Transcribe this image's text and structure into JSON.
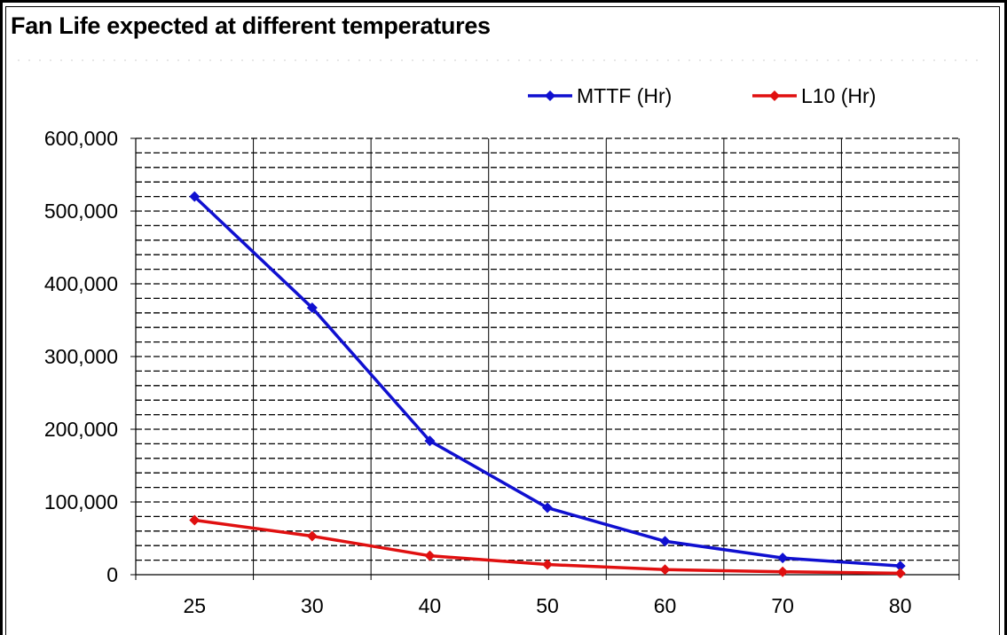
{
  "chart_data": {
    "type": "line",
    "title": "Fan Life expected at different temperatures",
    "xlabel": "",
    "ylabel": "",
    "categories": [
      "25",
      "30",
      "40",
      "50",
      "60",
      "70",
      "80"
    ],
    "series": [
      {
        "name": "MTTF (Hr)",
        "color": "#1010d0",
        "values": [
          520000,
          367000,
          184000,
          92000,
          46000,
          23000,
          12000
        ]
      },
      {
        "name": "L10 (Hr)",
        "color": "#e01010",
        "values": [
          75000,
          53000,
          26000,
          14000,
          7000,
          4000,
          2000
        ]
      }
    ],
    "ylim": [
      0,
      600000
    ],
    "yticks": [
      0,
      100000,
      200000,
      300000,
      400000,
      500000,
      600000
    ],
    "ytick_labels": [
      "0",
      "100,000",
      "200,000",
      "300,000",
      "400,000",
      "500,000",
      "600,000"
    ],
    "grid": true,
    "legend_position": "top-right"
  }
}
